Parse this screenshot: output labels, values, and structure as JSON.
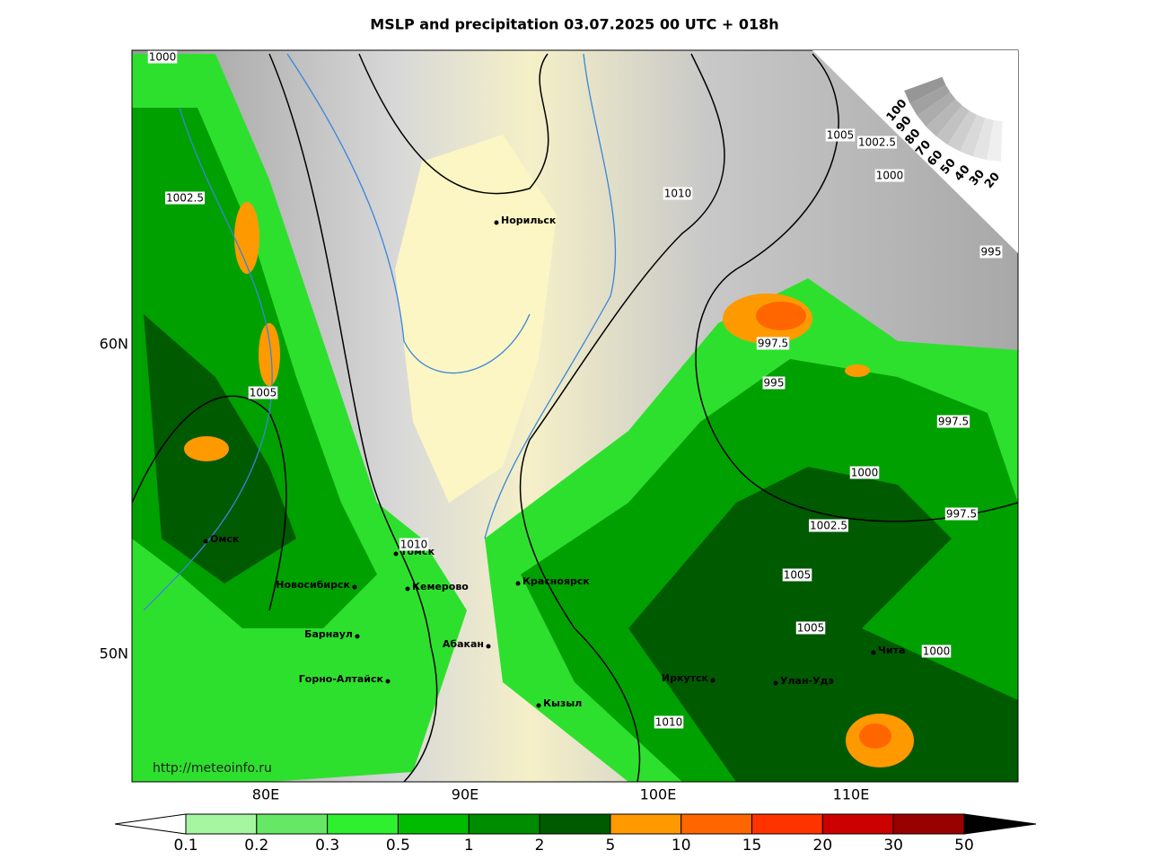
{
  "title": "MSLP and precipitation 03.07.2025 00 UTC + 018h",
  "longitude_labels": [
    "80E",
    "90E",
    "100E",
    "110E"
  ],
  "latitude_labels": [
    "60N",
    "50N"
  ],
  "cities": [
    "Норильск",
    "Омск",
    "Томск",
    "Новосибирск",
    "Кемерово",
    "Красноярск",
    "Барнаул",
    "Абакан",
    "Горно-Алтайск",
    "Кызыл",
    "Иркутск",
    "Улан-Удэ",
    "Чита"
  ],
  "isobar_labels": [
    "1000",
    "1002.5",
    "1005",
    "1010",
    "1010",
    "1005",
    "1002.5",
    "1000",
    "995",
    "997.5",
    "995",
    "997.5",
    "1000",
    "997.5",
    "1002.5",
    "1005",
    "1005",
    "1000",
    "1010"
  ],
  "cloud_scale": [
    100,
    90,
    80,
    70,
    60,
    50,
    40,
    30,
    20
  ],
  "credit": "http://meteoinfo.ru",
  "colorbar": {
    "levels": [
      0.1,
      0.2,
      0.3,
      0.5,
      1,
      2,
      5,
      10,
      15,
      20,
      30,
      50
    ],
    "colors": [
      "#a6f5a0",
      "#66e866",
      "#2ef02e",
      "#00bb00",
      "#008c00",
      "#005a00",
      "#ff9900",
      "#ff6600",
      "#ff3300",
      "#cc0000",
      "#990000"
    ]
  }
}
